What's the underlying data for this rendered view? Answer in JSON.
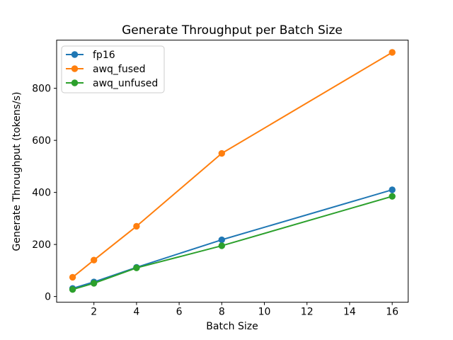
{
  "chart_data": {
    "type": "line",
    "title": "Generate Throughput per Batch Size",
    "xlabel": "Batch Size",
    "ylabel": "Generate Throughput (tokens/s)",
    "x": [
      1,
      2,
      4,
      8,
      16
    ],
    "series": [
      {
        "name": "fp16",
        "color": "#1f77b4",
        "values": [
          31,
          56,
          112,
          218,
          410
        ]
      },
      {
        "name": "awq_fused",
        "color": "#ff7f0e",
        "values": [
          74,
          140,
          270,
          550,
          938
        ]
      },
      {
        "name": "awq_unfused",
        "color": "#2ca02c",
        "values": [
          27,
          51,
          110,
          195,
          385
        ]
      }
    ],
    "xlim": [
      0.25,
      16.75
    ],
    "ylim": [
      -22,
      985
    ],
    "xticks": [
      2,
      4,
      6,
      8,
      10,
      12,
      14,
      16
    ],
    "yticks": [
      0,
      200,
      400,
      600,
      800
    ],
    "legend_position": "upper left",
    "grid": false,
    "marker": "circle"
  },
  "colors": {
    "background": "#ffffff",
    "axis": "#000000",
    "text": "#000000",
    "legend_border": "#cccccc"
  }
}
